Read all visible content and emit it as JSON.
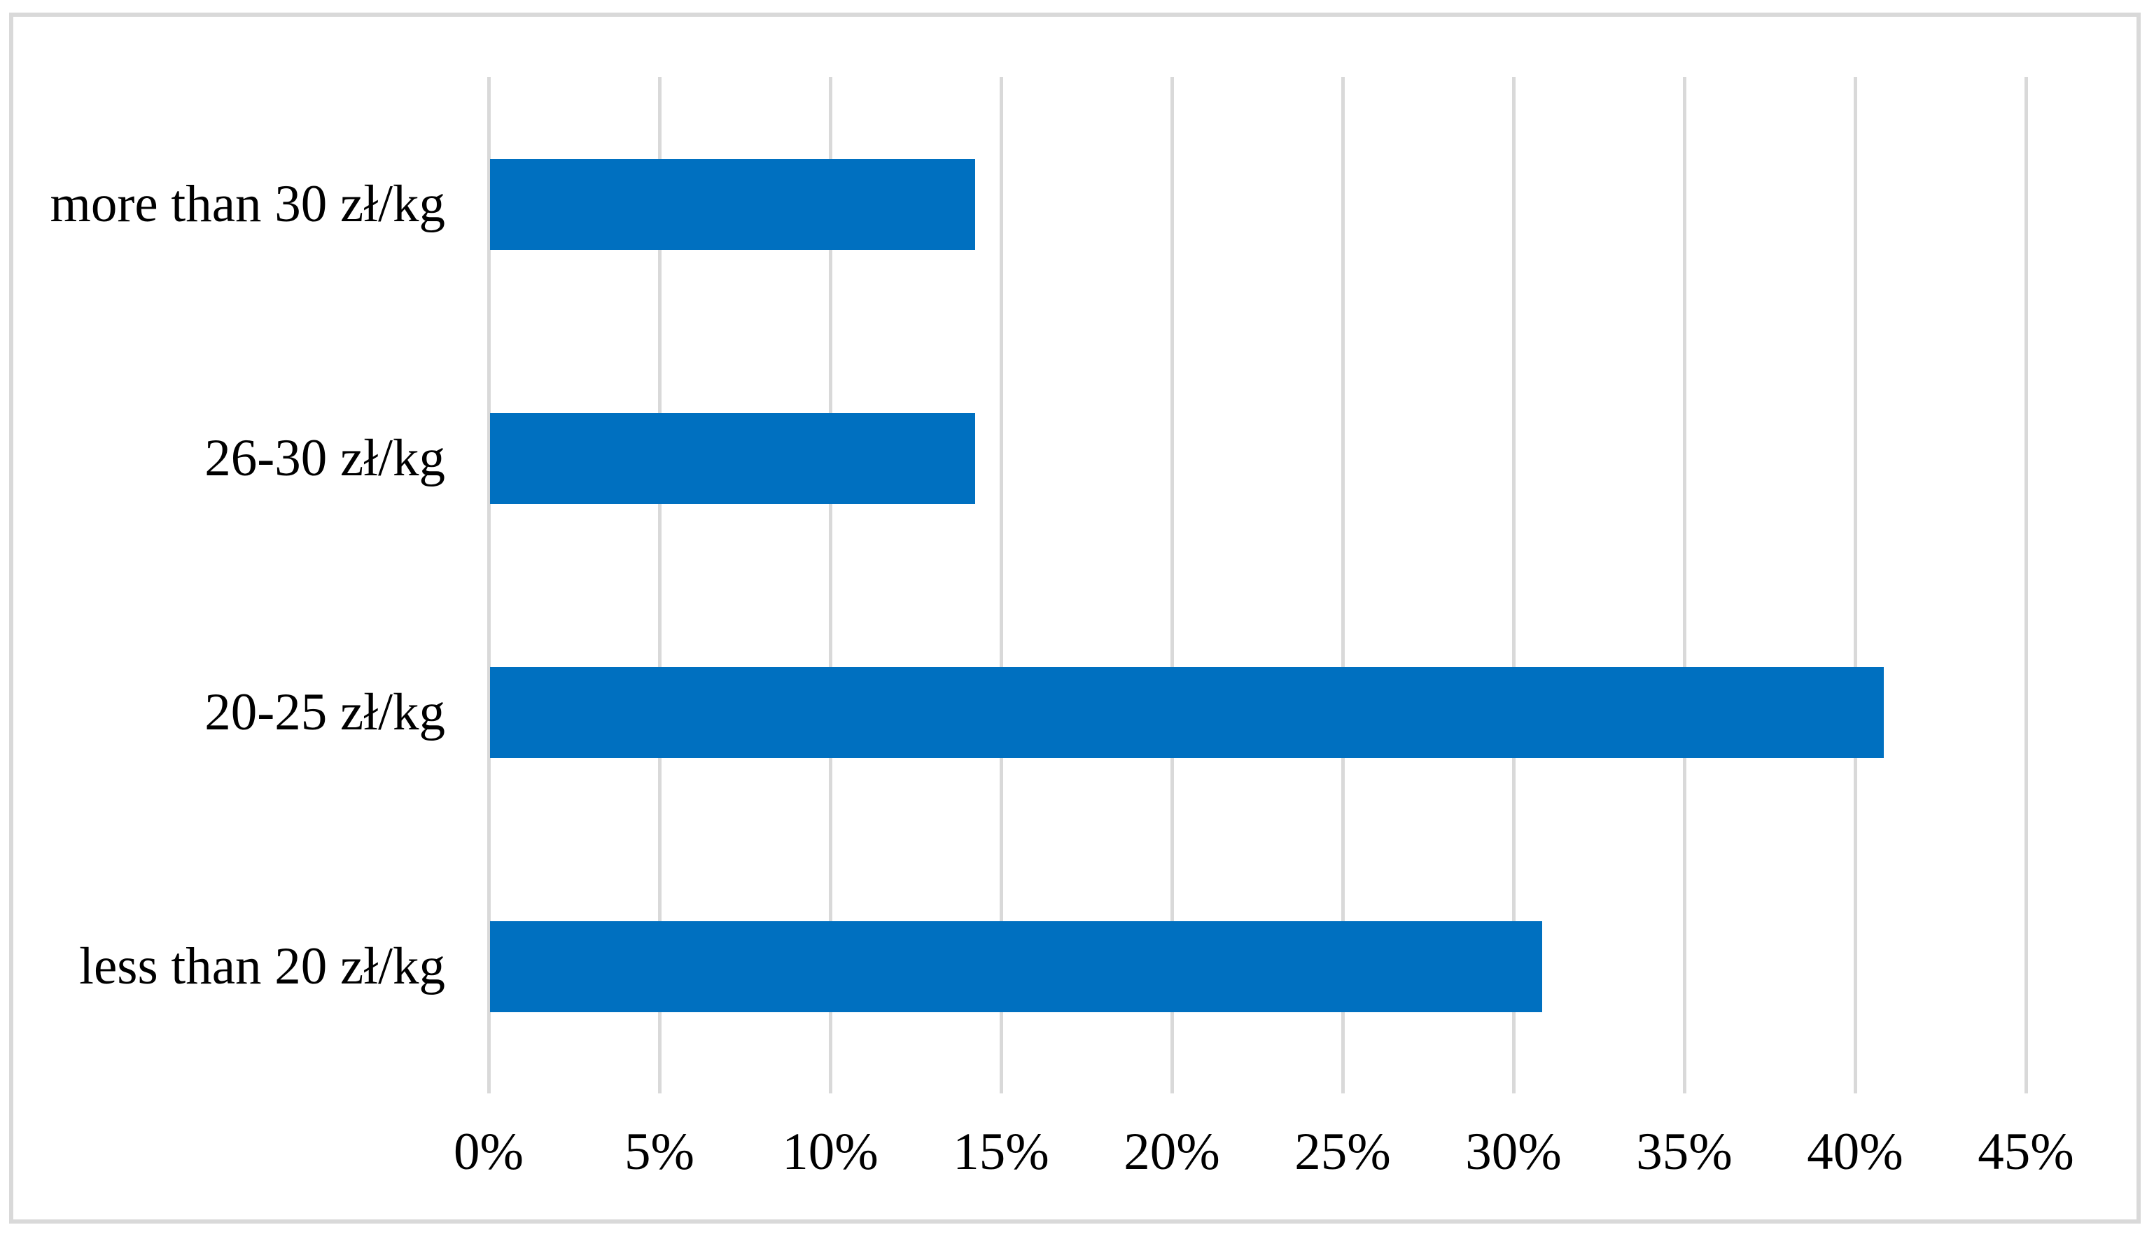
{
  "chart_data": {
    "type": "bar",
    "orientation": "horizontal",
    "title": "",
    "xlabel": "",
    "ylabel": "",
    "categories": [
      "more than 30 zł/kg",
      "26-30 zł/kg",
      "20-25 zł/kg",
      "less than 20 zł/kg"
    ],
    "values": [
      14.2,
      14.2,
      40.8,
      30.8
    ],
    "value_unit": "%",
    "xlim": [
      0,
      45
    ],
    "xtick_values": [
      0,
      5,
      10,
      15,
      20,
      25,
      30,
      35,
      40,
      45
    ],
    "xtick_labels": [
      "0%",
      "5%",
      "10%",
      "15%",
      "20%",
      "25%",
      "30%",
      "35%",
      "40%",
      "45%"
    ],
    "grid": "vertical-gridlines-on",
    "legend": "none",
    "colors": {
      "bar": "#0070C0",
      "gridline": "#D9D9D9",
      "frame_border": "#D9D9D9",
      "text": "#000000",
      "background": "#FFFFFF"
    }
  }
}
